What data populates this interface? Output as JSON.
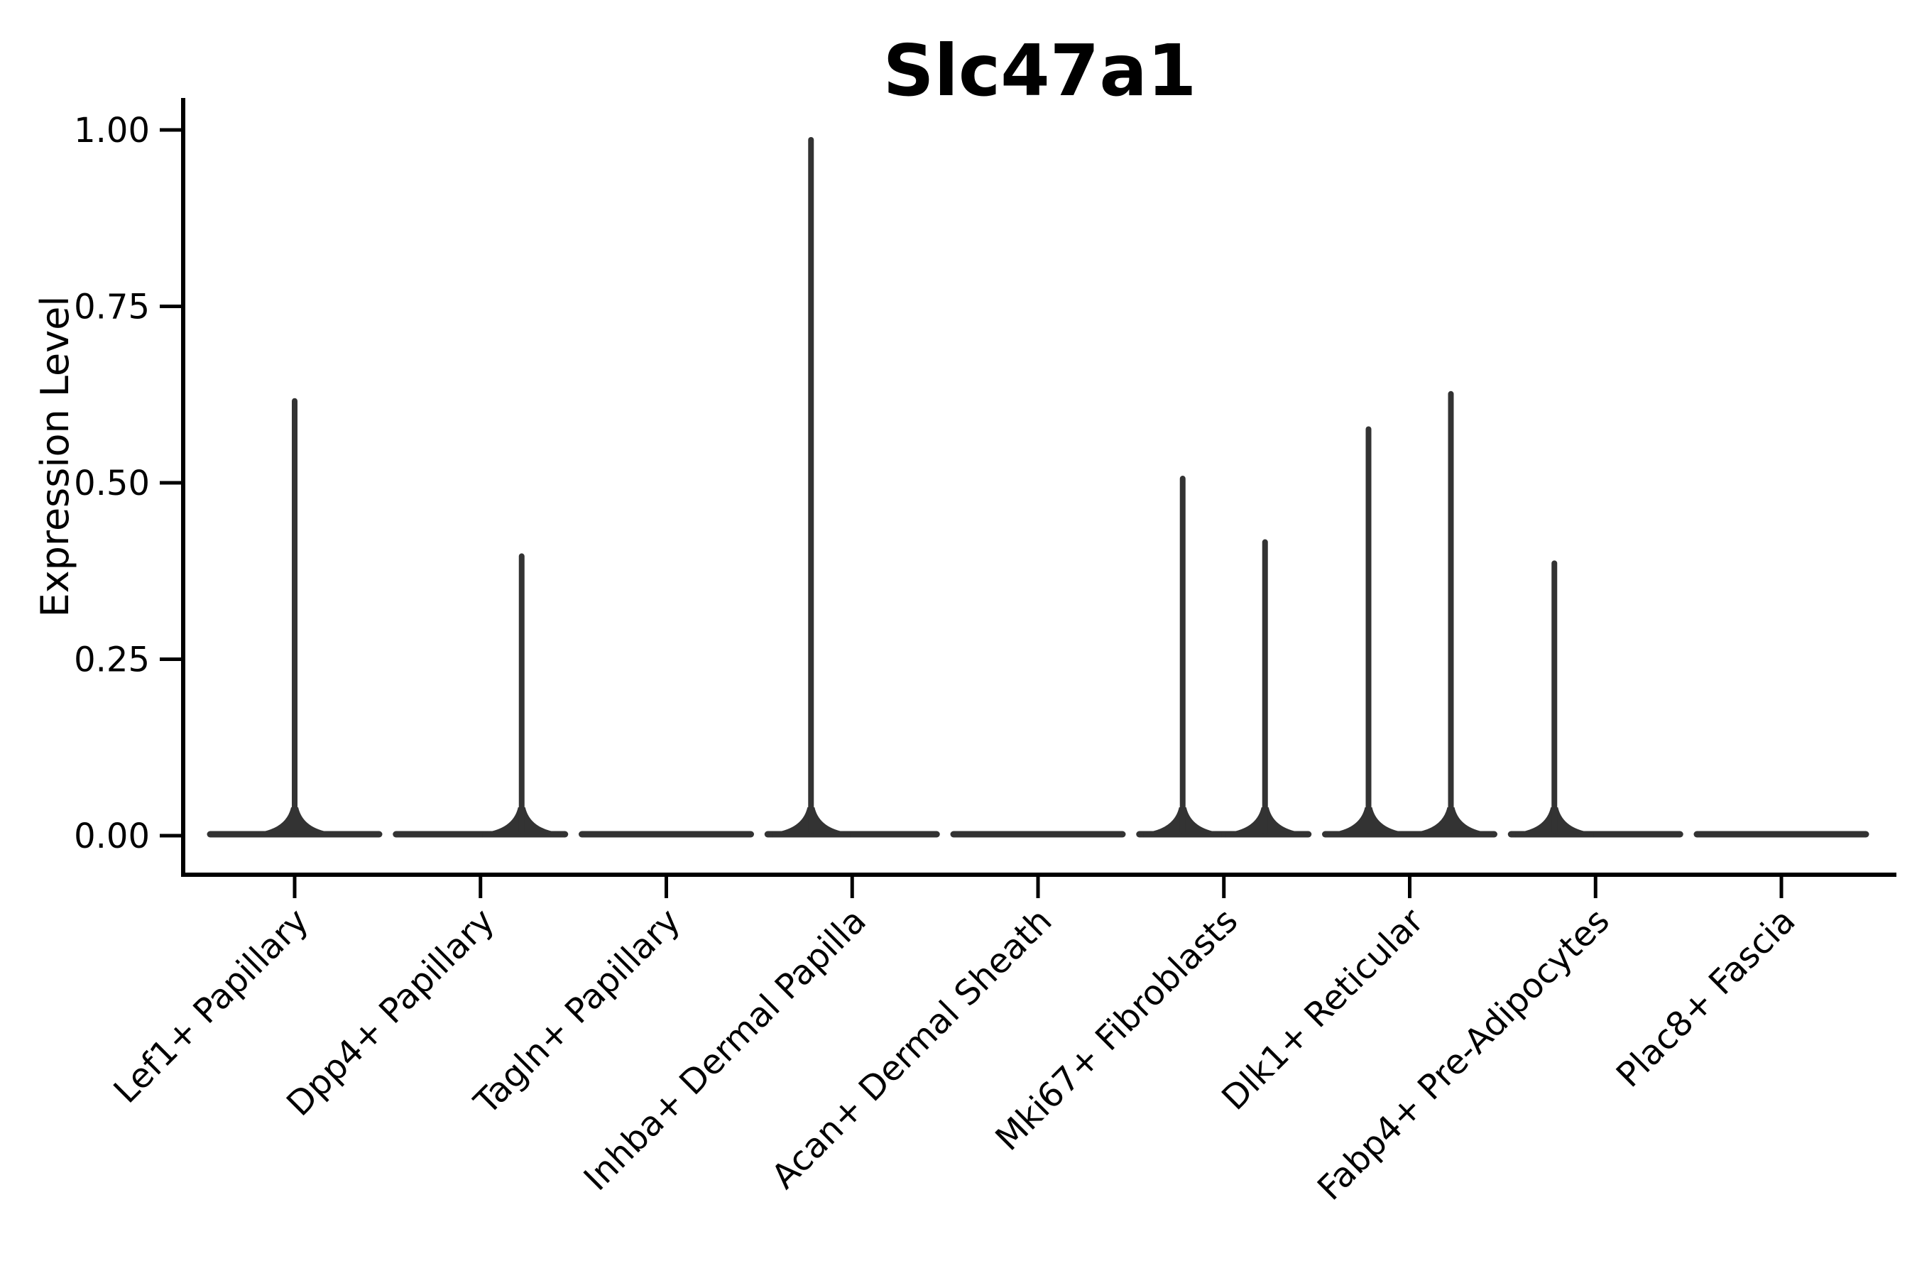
{
  "chart_data": {
    "type": "violin",
    "title": "Slc47a1",
    "xlabel": "",
    "ylabel": "Expression Level",
    "ylim": [
      0,
      1.05
    ],
    "grid": false,
    "legend": null,
    "yticks": [
      {
        "value": 0.0,
        "label": "0.00"
      },
      {
        "value": 0.25,
        "label": "0.25"
      },
      {
        "value": 0.5,
        "label": "0.50"
      },
      {
        "value": 0.75,
        "label": "0.75"
      },
      {
        "value": 1.0,
        "label": "1.00"
      }
    ],
    "categories": [
      "Lef1+ Papillary",
      "Dpp4+ Papillary",
      "Tagln+ Papillary",
      "Inhba+ Dermal Papilla",
      "Acan+ Dermal Sheath",
      "Mki67+ Fibroblasts",
      "Dlk1+ Reticular",
      "Fabp4+ Pre-Adipocytes",
      "Plac8+ Fascia"
    ],
    "violins": [
      {
        "category": "Lef1+ Papillary",
        "baseline_value": 0.0,
        "spikes": [
          {
            "position": "center",
            "max": 0.62
          }
        ]
      },
      {
        "category": "Dpp4+ Papillary",
        "baseline_value": 0.0,
        "spikes": [
          {
            "position": "right",
            "max": 0.4
          }
        ]
      },
      {
        "category": "Tagln+ Papillary",
        "baseline_value": 0.0,
        "spikes": []
      },
      {
        "category": "Inhba+ Dermal Papilla",
        "baseline_value": 0.0,
        "spikes": [
          {
            "position": "left",
            "max": 0.99
          }
        ]
      },
      {
        "category": "Acan+ Dermal Sheath",
        "baseline_value": 0.0,
        "spikes": []
      },
      {
        "category": "Mki67+ Fibroblasts",
        "baseline_value": 0.0,
        "spikes": [
          {
            "position": "left",
            "max": 0.51
          },
          {
            "position": "right",
            "max": 0.42
          }
        ]
      },
      {
        "category": "Dlk1+ Reticular",
        "baseline_value": 0.0,
        "spikes": [
          {
            "position": "left",
            "max": 0.58
          },
          {
            "position": "right",
            "max": 0.63
          }
        ]
      },
      {
        "category": "Fabp4+ Pre-Adipocytes",
        "baseline_value": 0.0,
        "spikes": [
          {
            "position": "left",
            "max": 0.39
          }
        ]
      },
      {
        "category": "Plac8+ Fascia",
        "baseline_value": 0.0,
        "spikes": []
      }
    ],
    "colors": {
      "violin": "#333333",
      "axis": "#000000",
      "text": "#000000",
      "background": "#ffffff"
    }
  }
}
